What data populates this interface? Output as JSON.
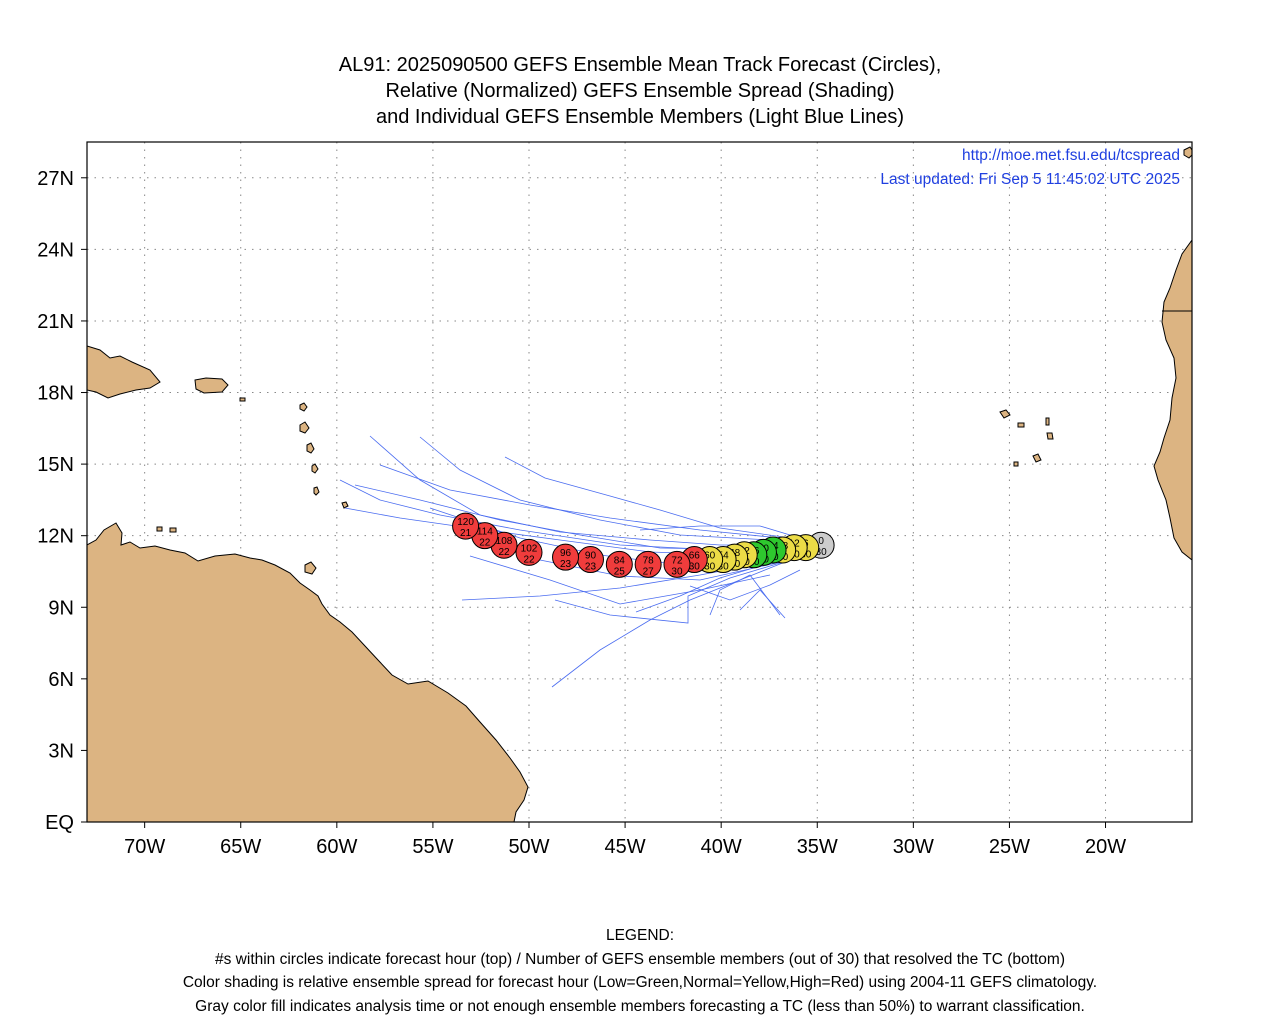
{
  "title": {
    "line1": "AL91: 2025090500 GEFS Ensemble Mean Track Forecast (Circles),",
    "line2": "Relative (Normalized) GEFS Ensemble Spread (Shading)",
    "line3": "and Individual GEFS Ensemble Members (Light Blue Lines)"
  },
  "header_info": {
    "url": "http://moe.met.fsu.edu/tcspread",
    "updated": "Last updated: Fri Sep 5 11:45:02 UTC 2025"
  },
  "legend": {
    "heading": "LEGEND:",
    "line1": "#s within circles indicate forecast hour (top) / Number of GEFS ensemble members (out of 30) that resolved the TC (bottom)",
    "line2": "Color shading is relative ensemble spread for forecast hour (Low=Green,Normal=Yellow,High=Red) using 2004-11 GEFS climatology.",
    "line3": "Gray color fill indicates analysis time or not enough ensemble members forecasting a TC (less than 50%) to warrant classification."
  },
  "colors": {
    "land": "#dcb482",
    "member_track": "#4a6cf0",
    "high_spread": "#f03c3c",
    "normal_spread": "#ecdc46",
    "low_spread": "#2ec82e",
    "analysis": "#cccccc",
    "url_text": "#1f3fe0"
  },
  "chart_data": {
    "type": "map",
    "lon_range": [
      -73,
      -15.5
    ],
    "lat_range": [
      0,
      28.5
    ],
    "lon_ticks": [
      {
        "lon": -70,
        "label": "70W"
      },
      {
        "lon": -65,
        "label": "65W"
      },
      {
        "lon": -60,
        "label": "60W"
      },
      {
        "lon": -55,
        "label": "55W"
      },
      {
        "lon": -50,
        "label": "50W"
      },
      {
        "lon": -45,
        "label": "45W"
      },
      {
        "lon": -40,
        "label": "40W"
      },
      {
        "lon": -35,
        "label": "35W"
      },
      {
        "lon": -30,
        "label": "30W"
      },
      {
        "lon": -25,
        "label": "25W"
      },
      {
        "lon": -20,
        "label": "20W"
      }
    ],
    "lat_ticks": [
      {
        "lat": 0,
        "label": "EQ"
      },
      {
        "lat": 3,
        "label": "3N"
      },
      {
        "lat": 6,
        "label": "6N"
      },
      {
        "lat": 9,
        "label": "9N"
      },
      {
        "lat": 12,
        "label": "12N"
      },
      {
        "lat": 15,
        "label": "15N"
      },
      {
        "lat": 18,
        "label": "18N"
      },
      {
        "lat": 21,
        "label": "21N"
      },
      {
        "lat": 24,
        "label": "24N"
      },
      {
        "lat": 27,
        "label": "27N"
      }
    ],
    "grid": true,
    "mean_track": [
      {
        "hour": "0",
        "members": "30",
        "lon": -34.8,
        "lat": 11.6,
        "spread": "analysis"
      },
      {
        "hour": "6",
        "members": "30",
        "lon": -35.6,
        "lat": 11.5,
        "spread": "normal"
      },
      {
        "hour": "12",
        "members": "30",
        "lon": -36.2,
        "lat": 11.5,
        "spread": "normal"
      },
      {
        "hour": "18",
        "members": "30",
        "lon": -36.8,
        "lat": 11.4,
        "spread": "normal"
      },
      {
        "hour": "24",
        "members": "30",
        "lon": -37.3,
        "lat": 11.4,
        "spread": "low"
      },
      {
        "hour": "30",
        "members": "30",
        "lon": -37.8,
        "lat": 11.3,
        "spread": "low"
      },
      {
        "hour": "36",
        "members": "30",
        "lon": -38.3,
        "lat": 11.2,
        "spread": "low"
      },
      {
        "hour": "42",
        "members": "30",
        "lon": -38.8,
        "lat": 11.2,
        "spread": "normal"
      },
      {
        "hour": "48",
        "members": "30",
        "lon": -39.3,
        "lat": 11.1,
        "spread": "normal"
      },
      {
        "hour": "54",
        "members": "30",
        "lon": -39.9,
        "lat": 11.0,
        "spread": "normal"
      },
      {
        "hour": "60",
        "members": "30",
        "lon": -40.6,
        "lat": 11.0,
        "spread": "normal"
      },
      {
        "hour": "66",
        "members": "30",
        "lon": -41.4,
        "lat": 11.0,
        "spread": "high"
      },
      {
        "hour": "72",
        "members": "30",
        "lon": -42.3,
        "lat": 10.8,
        "spread": "high"
      },
      {
        "hour": "78",
        "members": "27",
        "lon": -43.8,
        "lat": 10.8,
        "spread": "high"
      },
      {
        "hour": "84",
        "members": "25",
        "lon": -45.3,
        "lat": 10.8,
        "spread": "high"
      },
      {
        "hour": "90",
        "members": "23",
        "lon": -46.8,
        "lat": 11.0,
        "spread": "high"
      },
      {
        "hour": "96",
        "members": "23",
        "lon": -48.1,
        "lat": 11.1,
        "spread": "high"
      },
      {
        "hour": "102",
        "members": "22",
        "lon": -50.0,
        "lat": 11.3,
        "spread": "high"
      },
      {
        "hour": "108",
        "members": "22",
        "lon": -51.3,
        "lat": 11.6,
        "spread": "high"
      },
      {
        "hour": "114",
        "members": "22",
        "lon": -52.3,
        "lat": 12.0,
        "spread": "high"
      },
      {
        "hour": "120",
        "members": "21",
        "lon": -53.3,
        "lat": 12.4,
        "spread": "high"
      }
    ]
  }
}
